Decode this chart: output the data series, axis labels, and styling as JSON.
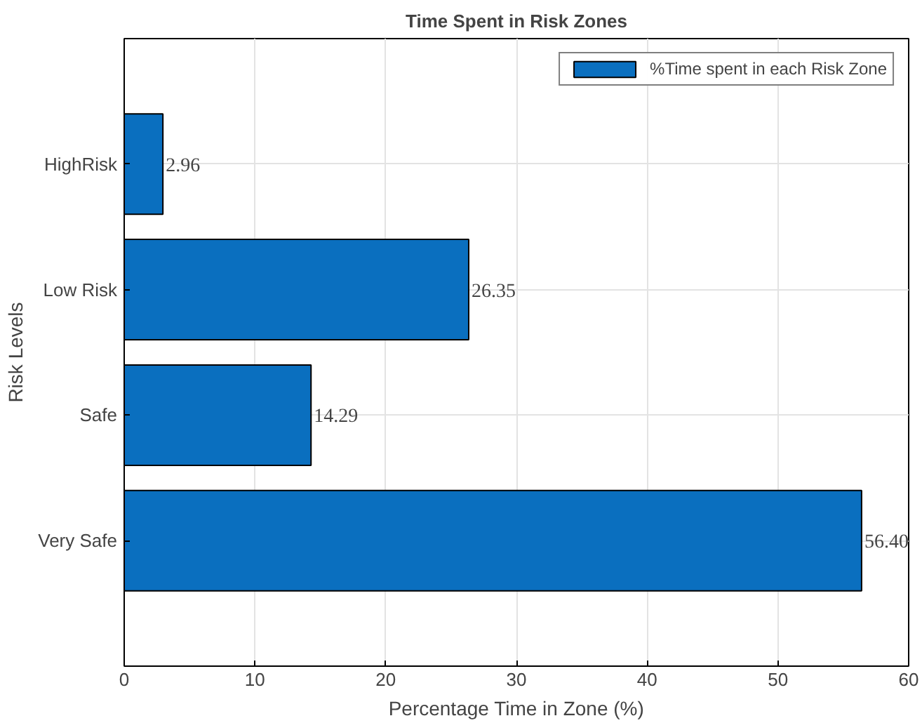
{
  "chart_data": {
    "type": "bar",
    "orientation": "horizontal",
    "title": "Time Spent in Risk Zones",
    "xlabel": "Percentage Time in Zone (%)",
    "ylabel": "Risk Levels",
    "categories": [
      "HighRisk",
      "Low Risk",
      "Safe",
      "Very Safe"
    ],
    "series": [
      {
        "name": "%Time spent in each Risk Zone",
        "color": "#0a6fbf",
        "values": [
          2.96,
          26.35,
          14.29,
          56.4
        ],
        "value_labels": [
          "2.96",
          "26.35",
          "14.29",
          "56.40"
        ]
      }
    ],
    "xlim": [
      0,
      60
    ],
    "xticks": [
      0,
      10,
      20,
      30,
      40,
      50,
      60
    ],
    "grid": true,
    "legend": "top right"
  }
}
